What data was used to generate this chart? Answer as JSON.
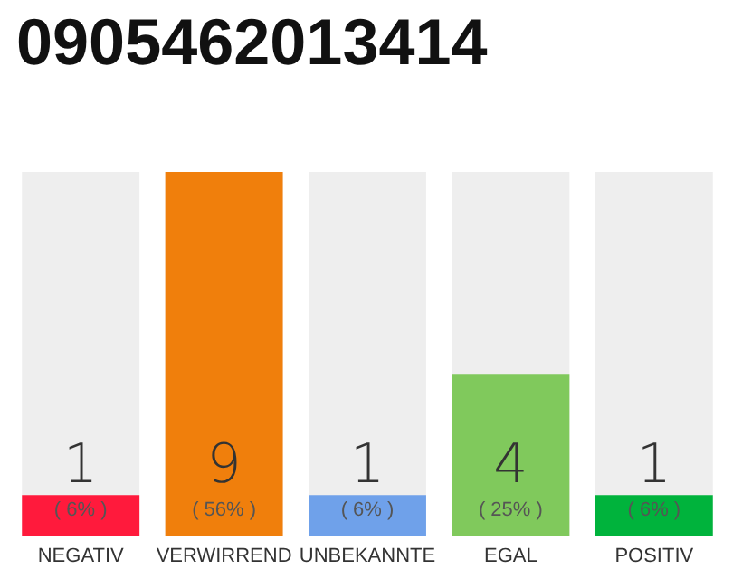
{
  "chart_data": {
    "type": "bar",
    "title": "0905462013414",
    "categories": [
      "NEGATIV",
      "VERWIRREND",
      "UNBEKANNTE",
      "EGAL",
      "POSITIV"
    ],
    "values": [
      1,
      9,
      1,
      4,
      1
    ],
    "colors": [
      "#ff1a3c",
      "#f07f0c",
      "#6fa1ea",
      "#80c95c",
      "#00b33c"
    ],
    "data_labels": true,
    "annotations": [
      "( 6% )",
      "( 56% )",
      "( 6% )",
      "( 25% )",
      "( 6% )"
    ]
  }
}
